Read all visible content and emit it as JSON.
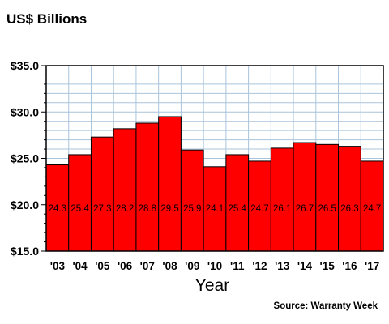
{
  "chart_data": {
    "type": "bar",
    "title": "US$ Billions",
    "xlabel": "Year",
    "ylabel": "",
    "source": "Source: Warranty Week",
    "categories": [
      "'03",
      "'04",
      "'05",
      "'06",
      "'07",
      "'08",
      "'09",
      "'10",
      "'11",
      "'12",
      "'13",
      "'14",
      "'15",
      "'16",
      "'17"
    ],
    "values": [
      24.3,
      25.4,
      27.3,
      28.2,
      28.8,
      29.5,
      25.9,
      24.1,
      25.4,
      24.7,
      26.1,
      26.7,
      26.5,
      26.3,
      24.7
    ],
    "data_labels": [
      "24.3",
      "25.4",
      "27.3",
      "28.2",
      "28.8",
      "29.5",
      "25.9",
      "24.1",
      "25.4",
      "24.7",
      "26.1",
      "26.7",
      "26.5",
      "26.3",
      "24.7"
    ],
    "y_ticks": [
      15,
      20,
      25,
      30,
      35
    ],
    "y_tick_labels": [
      "$15.0",
      "$20.0",
      "$25.0",
      "$30.0",
      "$35.0"
    ],
    "ylim": [
      15,
      35
    ],
    "grid": true,
    "bar_color": "#ff0000",
    "grid_color": "#a9c4dc",
    "legend": "none"
  }
}
